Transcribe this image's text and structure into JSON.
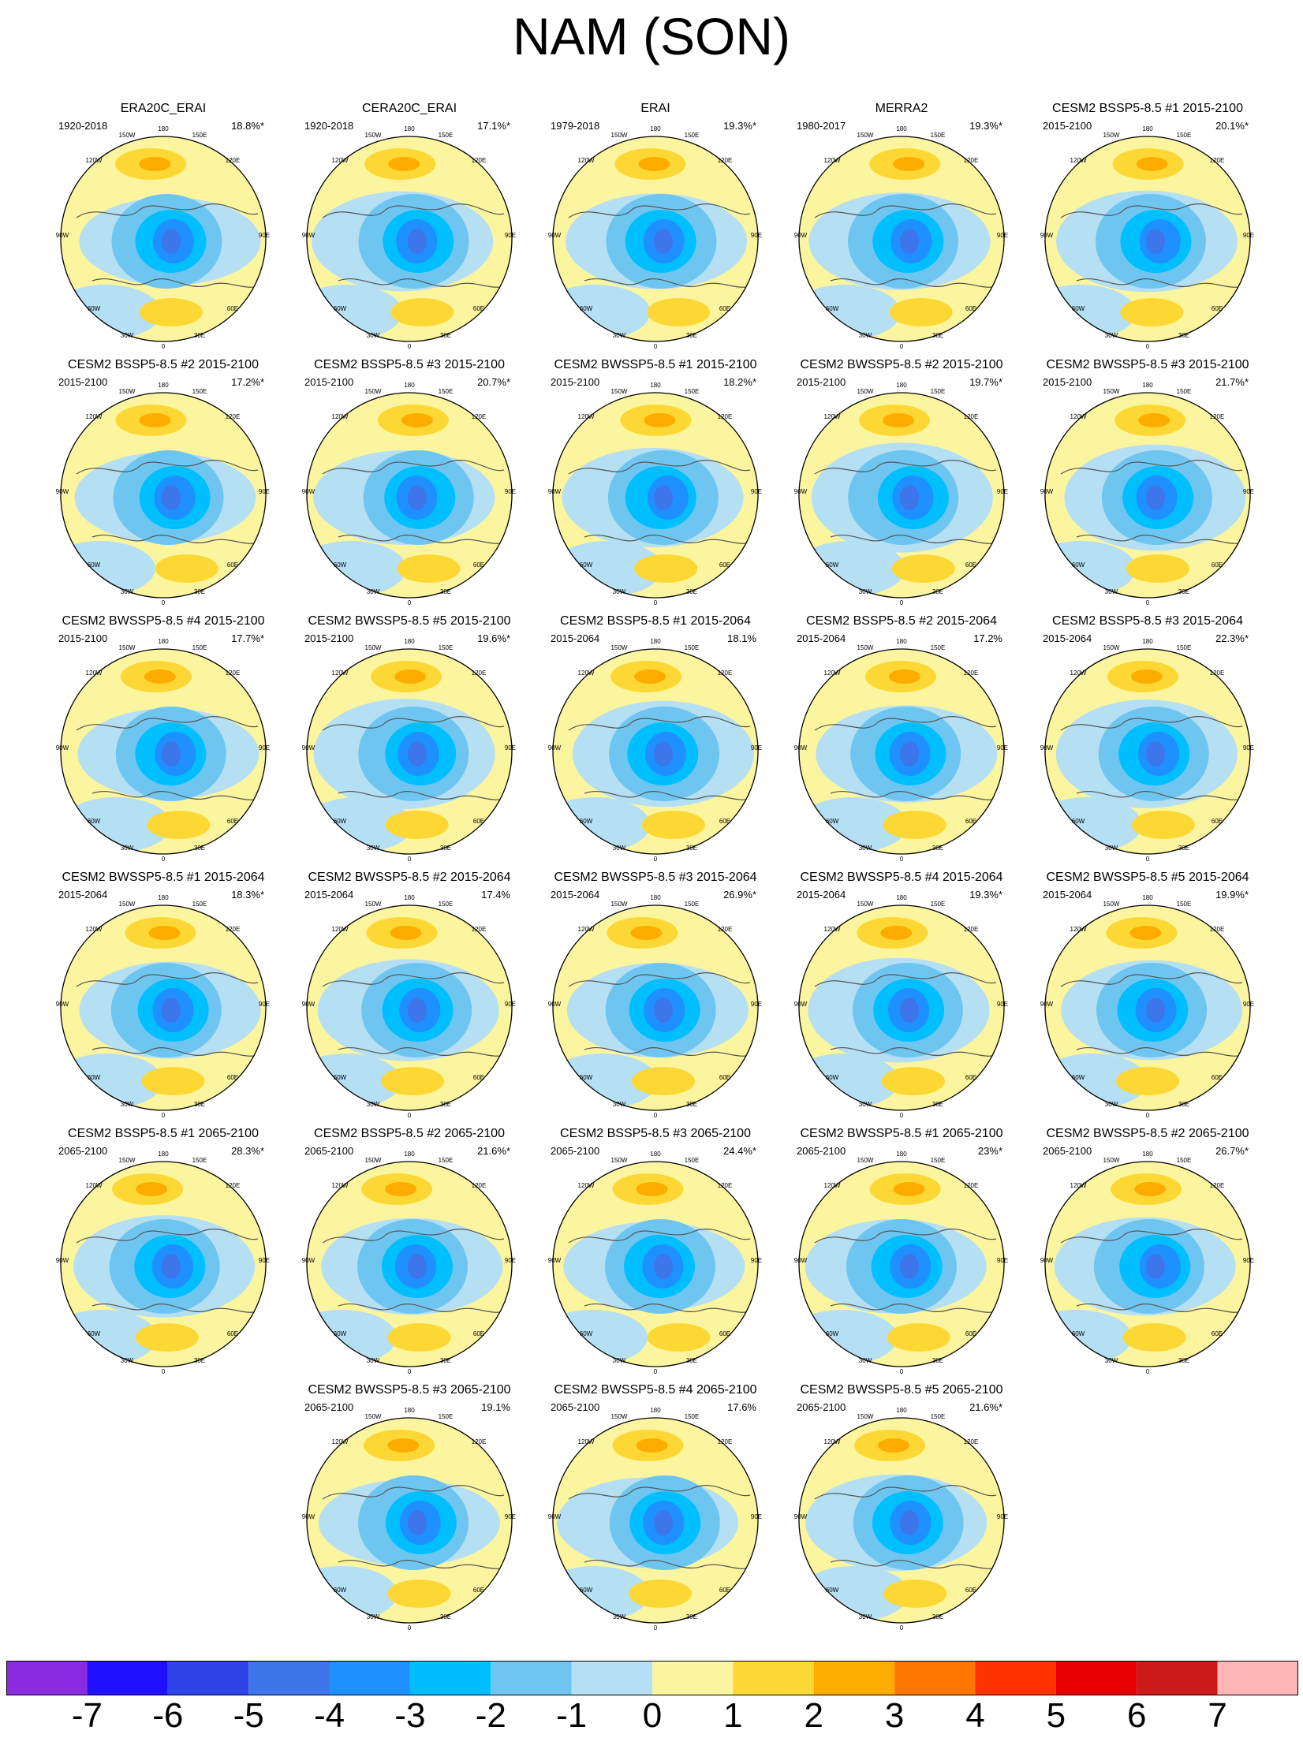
{
  "title": "NAM (SON)",
  "panels": [
    {
      "title": "ERA20C_ERAI",
      "period": "1920-2018",
      "pct": "18.8%*"
    },
    {
      "title": "CERA20C_ERAI",
      "period": "1920-2018",
      "pct": "17.1%*"
    },
    {
      "title": "ERAI",
      "period": "1979-2018",
      "pct": "19.3%*"
    },
    {
      "title": "MERRA2",
      "period": "1980-2017",
      "pct": "19.3%*"
    },
    {
      "title": "CESM2 BSSP5-8.5 #1 2015-2100",
      "period": "2015-2100",
      "pct": "20.1%*"
    },
    {
      "title": "CESM2 BSSP5-8.5 #2 2015-2100",
      "period": "2015-2100",
      "pct": "17.2%*"
    },
    {
      "title": "CESM2 BSSP5-8.5 #3 2015-2100",
      "period": "2015-2100",
      "pct": "20.7%*"
    },
    {
      "title": "CESM2 BWSSP5-8.5 #1 2015-2100",
      "period": "2015-2100",
      "pct": "18.2%*"
    },
    {
      "title": "CESM2 BWSSP5-8.5 #2 2015-2100",
      "period": "2015-2100",
      "pct": "19.7%*"
    },
    {
      "title": "CESM2 BWSSP5-8.5 #3 2015-2100",
      "period": "2015-2100",
      "pct": "21.7%*"
    },
    {
      "title": "CESM2 BWSSP5-8.5 #4 2015-2100",
      "period": "2015-2100",
      "pct": "17.7%*"
    },
    {
      "title": "CESM2 BWSSP5-8.5 #5 2015-2100",
      "period": "2015-2100",
      "pct": "19.6%*"
    },
    {
      "title": "CESM2 BSSP5-8.5 #1 2015-2064",
      "period": "2015-2064",
      "pct": "18.1%"
    },
    {
      "title": "CESM2 BSSP5-8.5 #2 2015-2064",
      "period": "2015-2064",
      "pct": "17.2%"
    },
    {
      "title": "CESM2 BSSP5-8.5 #3 2015-2064",
      "period": "2015-2064",
      "pct": "22.3%*"
    },
    {
      "title": "CESM2 BWSSP5-8.5 #1 2015-2064",
      "period": "2015-2064",
      "pct": "18.3%*"
    },
    {
      "title": "CESM2 BWSSP5-8.5 #2 2015-2064",
      "period": "2015-2064",
      "pct": "17.4%"
    },
    {
      "title": "CESM2 BWSSP5-8.5 #3 2015-2064",
      "period": "2015-2064",
      "pct": "26.9%*"
    },
    {
      "title": "CESM2 BWSSP5-8.5 #4 2015-2064",
      "period": "2015-2064",
      "pct": "19.3%*"
    },
    {
      "title": "CESM2 BWSSP5-8.5 #5 2015-2064",
      "period": "2015-2064",
      "pct": "19.9%*"
    },
    {
      "title": "CESM2 BSSP5-8.5 #1 2065-2100",
      "period": "2065-2100",
      "pct": "28.3%*"
    },
    {
      "title": "CESM2 BSSP5-8.5 #2 2065-2100",
      "period": "2065-2100",
      "pct": "21.6%*"
    },
    {
      "title": "CESM2 BSSP5-8.5 #3 2065-2100",
      "period": "2065-2100",
      "pct": "24.4%*"
    },
    {
      "title": "CESM2 BWSSP5-8.5 #1 2065-2100",
      "period": "2065-2100",
      "pct": "23%*"
    },
    {
      "title": "CESM2 BWSSP5-8.5 #2 2065-2100",
      "period": "2065-2100",
      "pct": "26.7%*"
    },
    {
      "title": "CESM2 BWSSP5-8.5 #3 2065-2100",
      "period": "2065-2100",
      "pct": "19.1%"
    },
    {
      "title": "CESM2 BWSSP5-8.5 #4 2065-2100",
      "period": "2065-2100",
      "pct": "17.6%"
    },
    {
      "title": "CESM2 BWSSP5-8.5 #5 2065-2100",
      "period": "2065-2100",
      "pct": "21.6%*"
    }
  ],
  "lon_labels": [
    "180",
    "150W",
    "150E",
    "120W",
    "120E",
    "90W",
    "90E",
    "60W",
    "60E",
    "30W",
    "30E",
    "0"
  ],
  "colorbar": {
    "ticks": [
      "-7",
      "-6",
      "-5",
      "-4",
      "-3",
      "-2",
      "-1",
      "0",
      "1",
      "2",
      "3",
      "4",
      "5",
      "6",
      "7"
    ],
    "colors": [
      "#8a2be2",
      "#1f10ff",
      "#2f44e8",
      "#3c76ea",
      "#1e90ff",
      "#00bfff",
      "#6ec6f0",
      "#b5dff3",
      "#fcf59f",
      "#fdd835",
      "#ffac00",
      "#ff7700",
      "#ff3300",
      "#e60000",
      "#cc1a1a",
      "#ffb6b6"
    ]
  }
}
